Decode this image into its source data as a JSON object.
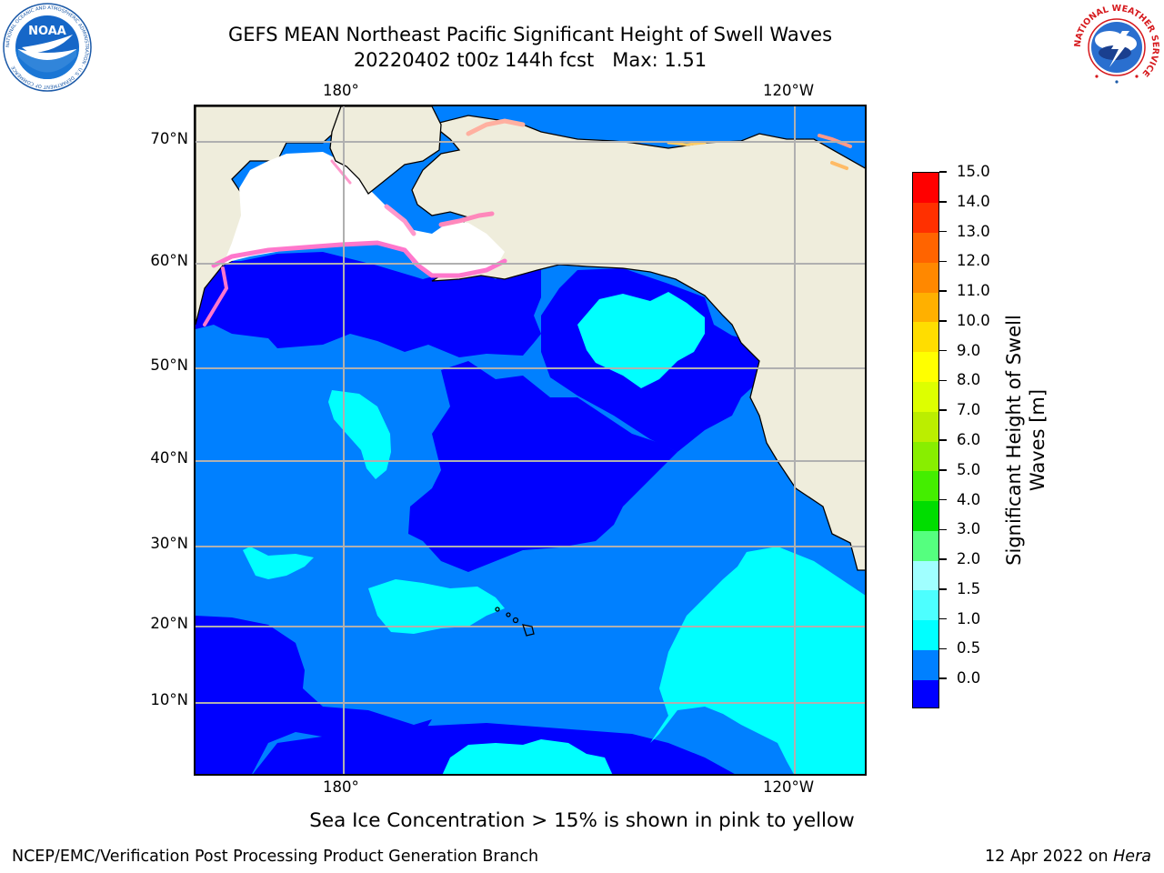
{
  "header": {
    "title_line1": "GEFS MEAN Northeast Pacific Significant Height of Swell Waves",
    "title_line2": "20220402 t00z 144h fcst   Max: 1.51"
  },
  "logos": {
    "left": {
      "icon": "noaa-logo",
      "text": "NOAA",
      "ring_text": "NATIONAL OCEANIC AND ATMOSPHERIC ADMINISTRATION · U.S. DEPARTMENT OF COMMERCE"
    },
    "right": {
      "icon": "national-weather-service-logo",
      "ring_text": "NATIONAL WEATHER SERVICE"
    }
  },
  "map": {
    "lon_labels_top": [
      "180°",
      "120°W"
    ],
    "lon_labels_bottom": [
      "180°",
      "120°W"
    ],
    "lat_labels": [
      "70°N",
      "60°N",
      "50°N",
      "40°N",
      "30°N",
      "20°N",
      "10°N"
    ],
    "colors": {
      "land": "#efeddc",
      "ice_free_white": "#ffffff",
      "coastline": "#000000",
      "grid": "#b0b0b0"
    }
  },
  "colorbar": {
    "title": "Significant Height of Swell Waves [m]",
    "tick_labels": [
      "15.0",
      "14.0",
      "13.0",
      "12.0",
      "11.0",
      "10.0",
      "9.0",
      "8.0",
      "7.0",
      "6.0",
      "5.0",
      "4.0",
      "3.0",
      "2.0",
      "1.5",
      "1.0",
      "0.5",
      "0.0"
    ],
    "colors_bottom_to_top": [
      "#0000ff",
      "#0080ff",
      "#00ffff",
      "#4dffff",
      "#a0ffff",
      "#55ff7f",
      "#00dd00",
      "#44ee00",
      "#88ee00",
      "#bbee00",
      "#ddff00",
      "#ffff00",
      "#ffdd00",
      "#ffb000",
      "#ff8800",
      "#ff6400",
      "#ff3000",
      "#ff0000"
    ]
  },
  "annotation": "Sea Ice Concentration > 15% is shown in pink to yellow",
  "footer": {
    "left": "NCEP/EMC/Verification Post Processing Product Generation Branch",
    "right_prefix": "12 Apr 2022 on ",
    "right_host": "Hera"
  }
}
